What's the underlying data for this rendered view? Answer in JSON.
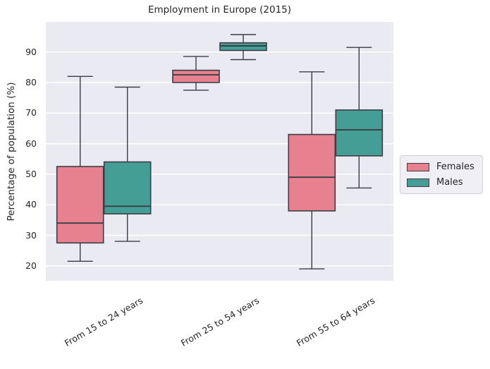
{
  "figure": {
    "title": "Employment in Europe (2015)"
  },
  "chart_data": {
    "type": "boxplot",
    "title": "Employment in Europe (2015)",
    "xlabel": "",
    "ylabel": "Percentage of population (%)",
    "categories": [
      "From 15 to 24 years",
      "From 25 to 54 years",
      "From 55 to 64 years"
    ],
    "xticklabel_rotation_deg": 30,
    "yticks": [
      20,
      30,
      40,
      50,
      60,
      70,
      80,
      90
    ],
    "ylim": [
      15,
      100
    ],
    "grid": "horizontal white gridlines on lavender background",
    "legend_position": "center right, outside axes",
    "series": [
      {
        "name": "Females",
        "color": "#e78190",
        "boxes": [
          {
            "whisker_low": 21.5,
            "q1": 27.5,
            "median": 34,
            "q3": 52.5,
            "whisker_high": 82
          },
          {
            "whisker_low": 77.5,
            "q1": 80,
            "median": 82.5,
            "q3": 84,
            "whisker_high": 88.5
          },
          {
            "whisker_low": 19,
            "q1": 38,
            "median": 49,
            "q3": 63,
            "whisker_high": 83.5
          }
        ]
      },
      {
        "name": "Males",
        "color": "#459e96",
        "boxes": [
          {
            "whisker_low": 28,
            "q1": 37,
            "median": 39.5,
            "q3": 54,
            "whisker_high": 78.5
          },
          {
            "whisker_low": 87.5,
            "q1": 90.5,
            "median": 92,
            "q3": 93,
            "whisker_high": 95.7
          },
          {
            "whisker_low": 45.5,
            "q1": 56,
            "median": 64.5,
            "q3": 71,
            "whisker_high": 91.5
          }
        ]
      }
    ],
    "style": {
      "plot_background": "#eaeaf2",
      "grid_color": "#ffffff",
      "box_edge_color": "#3d3d45",
      "text_color": "#262626",
      "legend_background": "#f0eff6"
    }
  }
}
